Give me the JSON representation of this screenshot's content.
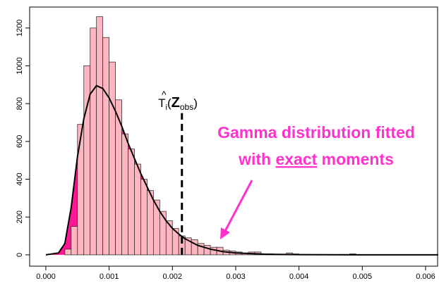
{
  "chart_data": {
    "type": "histogram",
    "bins": [
      0,
      0.0001,
      0.0002,
      0.0003,
      0.0004,
      0.0005,
      0.0006,
      0.0007,
      0.0008,
      0.0009,
      0.001,
      0.0011,
      0.0012,
      0.0013,
      0.0014,
      0.0015,
      0.0016,
      0.0017,
      0.0018,
      0.0019,
      0.002,
      0.0021,
      0.0022,
      0.0023,
      0.0024,
      0.0025,
      0.0026,
      0.0027,
      0.0028,
      0.0029,
      0.003,
      0.0031,
      0.0032,
      0.0033,
      0.0034,
      0.0035,
      0.0036,
      0.0037,
      0.0038,
      0.0039,
      0.004,
      0.0041,
      0.0042,
      0.0043,
      0.0044,
      0.0045,
      0.0046,
      0.0047,
      0.0048,
      0.0049,
      0.005,
      0.0051,
      0.0052,
      0.0053,
      0.0054,
      0.0055,
      0.0056,
      0.0057,
      0.0058,
      0.0059,
      0.006,
      0.0061,
      0.0062
    ],
    "values": [
      0,
      0,
      0,
      30,
      150,
      690,
      1000,
      1200,
      1260,
      1150,
      1020,
      820,
      640,
      560,
      480,
      400,
      340,
      290,
      230,
      180,
      140,
      100,
      90,
      80,
      60,
      50,
      40,
      40,
      25,
      20,
      15,
      10,
      15,
      15,
      5,
      5,
      3,
      3,
      10,
      5,
      2,
      2,
      0,
      2,
      0,
      0,
      2,
      2,
      5,
      0,
      0,
      0,
      0,
      0,
      0,
      0,
      0,
      0,
      0,
      0,
      0,
      0
    ],
    "color": "#ffb6c1",
    "curve": {
      "color": "#ff1493",
      "x": [
        0,
        0.0002,
        0.0003,
        0.0004,
        0.0005,
        0.0006,
        0.0007,
        0.0008,
        0.0009,
        0.001,
        0.0011,
        0.0012,
        0.0013,
        0.0014,
        0.0015,
        0.0016,
        0.0017,
        0.0018,
        0.0019,
        0.002,
        0.0021,
        0.0022,
        0.0024,
        0.0026,
        0.0028,
        0.003,
        0.0035,
        0.004,
        0.005,
        0.0062
      ],
      "y": [
        0,
        10,
        60,
        250,
        520,
        720,
        850,
        895,
        880,
        830,
        760,
        680,
        590,
        510,
        430,
        360,
        290,
        230,
        180,
        140,
        110,
        85,
        50,
        30,
        17,
        10,
        3,
        1,
        0,
        0
      ]
    },
    "observed": {
      "x": 0.00215,
      "y": 750,
      "label": {
        "base": "T",
        "sub": "i",
        "arg": "Z",
        "arg_sub": "obs"
      }
    },
    "annotation": {
      "line1": "Gamma distribution fitted",
      "line2_pre": "with",
      "line2_em": "exact",
      "line2_post": "moments",
      "color": "#ff33cc"
    },
    "xlim": [
      -0.000256,
      0.00619
    ],
    "ylim": [
      -60,
      1311
    ],
    "xticks": [
      {
        "value": 0,
        "label": "0.000"
      },
      {
        "value": 0.001,
        "label": "0.001"
      },
      {
        "value": 0.002,
        "label": "0.002"
      },
      {
        "value": 0.003,
        "label": "0.003"
      },
      {
        "value": 0.004,
        "label": "0.004"
      },
      {
        "value": 0.005,
        "label": "0.005"
      },
      {
        "value": 0.006,
        "label": "0.006"
      }
    ],
    "yticks": [
      0,
      200,
      400,
      600,
      800,
      1000,
      1200
    ]
  }
}
